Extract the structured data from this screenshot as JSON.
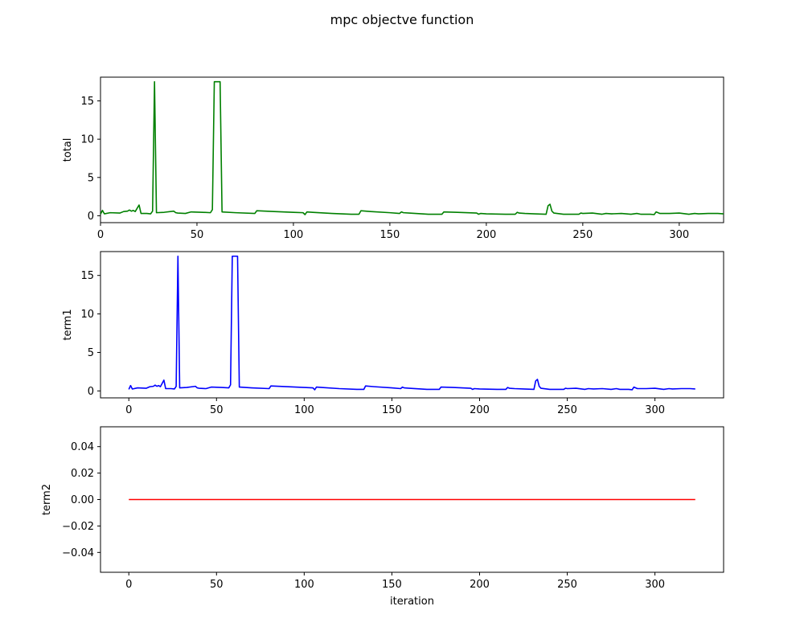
{
  "chart_data": {
    "type": "line",
    "title": "mpc objectve function",
    "xlabel": "iteration",
    "subplots": [
      {
        "name": "total",
        "ylabel": "total",
        "color": "#008000",
        "xlim": [
          0,
          323
        ],
        "ylim": [
          -0.9,
          18.1
        ],
        "xticks": [
          0,
          50,
          100,
          150,
          200,
          250,
          300
        ],
        "yticks": [
          0,
          5,
          10,
          15
        ],
        "show_xtick_labels": true,
        "series": {
          "x": [
            0,
            1,
            2,
            5,
            10,
            12,
            14,
            15,
            16,
            17,
            18,
            20,
            21,
            24,
            26,
            27,
            28,
            29,
            33,
            38,
            39,
            40,
            44,
            47,
            53,
            57,
            58,
            59,
            62,
            63,
            70,
            80,
            81,
            90,
            100,
            105,
            106,
            107,
            110,
            120,
            130,
            134,
            135,
            140,
            150,
            155,
            156,
            157,
            160,
            170,
            177,
            178,
            185,
            195,
            196,
            197,
            200,
            210,
            215,
            216,
            217,
            220,
            225,
            231,
            232,
            233,
            234,
            235,
            240,
            248,
            249,
            250,
            255,
            260,
            262,
            265,
            270,
            275,
            278,
            280,
            285,
            287,
            288,
            290,
            295,
            300,
            305,
            308,
            310,
            315,
            320,
            323
          ],
          "y": [
            0.2,
            0.7,
            0.25,
            0.4,
            0.35,
            0.55,
            0.6,
            0.75,
            0.6,
            0.7,
            0.55,
            1.4,
            0.3,
            0.3,
            0.25,
            0.6,
            17.5,
            0.4,
            0.45,
            0.6,
            0.4,
            0.35,
            0.3,
            0.5,
            0.45,
            0.4,
            0.8,
            17.5,
            17.5,
            0.5,
            0.4,
            0.3,
            0.65,
            0.55,
            0.45,
            0.4,
            0.15,
            0.5,
            0.45,
            0.3,
            0.2,
            0.2,
            0.65,
            0.55,
            0.4,
            0.3,
            0.5,
            0.4,
            0.35,
            0.2,
            0.2,
            0.5,
            0.45,
            0.35,
            0.2,
            0.3,
            0.25,
            0.2,
            0.2,
            0.45,
            0.35,
            0.3,
            0.25,
            0.2,
            1.3,
            1.5,
            0.6,
            0.35,
            0.2,
            0.2,
            0.35,
            0.3,
            0.35,
            0.2,
            0.3,
            0.25,
            0.3,
            0.2,
            0.3,
            0.2,
            0.2,
            0.15,
            0.5,
            0.3,
            0.3,
            0.35,
            0.2,
            0.3,
            0.25,
            0.3,
            0.3,
            0.25
          ]
        }
      },
      {
        "name": "term1",
        "ylabel": "term1",
        "color": "#0000ff",
        "xlim": [
          -16.15,
          339.15
        ],
        "ylim": [
          -0.9,
          18.1
        ],
        "xticks": [
          0,
          50,
          100,
          150,
          200,
          250,
          300
        ],
        "yticks": [
          0,
          5,
          10,
          15
        ],
        "show_xtick_labels": true,
        "series": {
          "x": [
            0,
            1,
            2,
            5,
            10,
            12,
            14,
            15,
            16,
            17,
            18,
            20,
            21,
            24,
            26,
            27,
            28,
            29,
            33,
            38,
            39,
            40,
            44,
            47,
            53,
            57,
            58,
            59,
            62,
            63,
            70,
            80,
            81,
            90,
            100,
            105,
            106,
            107,
            110,
            120,
            130,
            134,
            135,
            140,
            150,
            155,
            156,
            157,
            160,
            170,
            177,
            178,
            185,
            195,
            196,
            197,
            200,
            210,
            215,
            216,
            217,
            220,
            225,
            231,
            232,
            233,
            234,
            235,
            240,
            248,
            249,
            250,
            255,
            260,
            262,
            265,
            270,
            275,
            278,
            280,
            285,
            287,
            288,
            290,
            295,
            300,
            305,
            308,
            310,
            315,
            320,
            323
          ],
          "y": [
            0.2,
            0.7,
            0.25,
            0.4,
            0.35,
            0.55,
            0.6,
            0.75,
            0.6,
            0.7,
            0.55,
            1.4,
            0.3,
            0.3,
            0.25,
            0.6,
            17.5,
            0.4,
            0.45,
            0.6,
            0.4,
            0.35,
            0.3,
            0.5,
            0.45,
            0.4,
            0.8,
            17.5,
            17.5,
            0.5,
            0.4,
            0.3,
            0.65,
            0.55,
            0.45,
            0.4,
            0.15,
            0.5,
            0.45,
            0.3,
            0.2,
            0.2,
            0.65,
            0.55,
            0.4,
            0.3,
            0.5,
            0.4,
            0.35,
            0.2,
            0.2,
            0.5,
            0.45,
            0.35,
            0.2,
            0.3,
            0.25,
            0.2,
            0.2,
            0.45,
            0.35,
            0.3,
            0.25,
            0.2,
            1.3,
            1.5,
            0.6,
            0.35,
            0.2,
            0.2,
            0.35,
            0.3,
            0.35,
            0.2,
            0.3,
            0.25,
            0.3,
            0.2,
            0.3,
            0.2,
            0.2,
            0.15,
            0.5,
            0.3,
            0.3,
            0.35,
            0.2,
            0.3,
            0.25,
            0.3,
            0.3,
            0.25
          ]
        }
      },
      {
        "name": "term2",
        "ylabel": "term2",
        "color": "#ff0000",
        "xlim": [
          -16.15,
          339.15
        ],
        "ylim": [
          -0.055,
          0.055
        ],
        "xticks": [
          0,
          50,
          100,
          150,
          200,
          250,
          300
        ],
        "yticks": [
          -0.04,
          -0.02,
          0.0,
          0.02,
          0.04
        ],
        "ytick_labels": [
          "−0.04",
          "−0.02",
          "0.00",
          "0.02",
          "0.04"
        ],
        "show_xtick_labels": true,
        "series": {
          "x": [
            0,
            323
          ],
          "y": [
            0,
            0
          ]
        }
      }
    ]
  }
}
